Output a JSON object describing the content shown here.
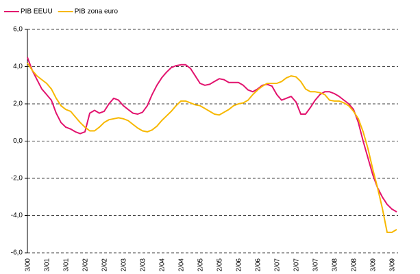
{
  "chart_data": {
    "type": "line",
    "categories": [
      "3/00",
      null,
      null,
      null,
      "3/01",
      null,
      null,
      null,
      "3/01",
      null,
      null,
      null,
      "2/02",
      null,
      null,
      null,
      "2/02",
      null,
      null,
      null,
      "2/03",
      null,
      null,
      null,
      "2/03",
      null,
      null,
      null,
      "2/04",
      null,
      null,
      null,
      "2/04",
      null,
      null,
      null,
      "2/05",
      null,
      null,
      null,
      "2/05",
      null,
      null,
      null,
      "2/06",
      null,
      null,
      null,
      "2/06",
      null,
      null,
      null,
      "2/07",
      null,
      null,
      null,
      "2/07",
      null,
      null,
      null,
      "3/07",
      null,
      null,
      null,
      "3/08",
      null,
      null,
      null,
      "2/08",
      null,
      null,
      null,
      "3/09",
      null,
      null,
      null,
      "3/09",
      null
    ],
    "series": [
      {
        "name": "PIB EEUU",
        "color": "#e2136e",
        "values": [
          4.5,
          3.8,
          3.3,
          2.8,
          2.5,
          2.2,
          1.5,
          1.0,
          0.75,
          0.65,
          0.5,
          0.4,
          0.5,
          1.5,
          1.65,
          1.5,
          1.6,
          2.0,
          2.3,
          2.2,
          1.9,
          1.7,
          1.5,
          1.45,
          1.55,
          1.9,
          2.5,
          3.0,
          3.4,
          3.7,
          3.95,
          4.05,
          4.1,
          4.1,
          3.9,
          3.5,
          3.1,
          3.0,
          3.05,
          3.2,
          3.35,
          3.3,
          3.15,
          3.15,
          3.15,
          3.0,
          2.75,
          2.65,
          2.8,
          3.0,
          3.05,
          2.95,
          2.5,
          2.2,
          2.3,
          2.4,
          2.1,
          1.45,
          1.45,
          1.8,
          2.2,
          2.5,
          2.65,
          2.65,
          2.55,
          2.4,
          2.2,
          2.0,
          1.7,
          1.0,
          0.0,
          -0.9,
          -1.8,
          -2.5,
          -3.0,
          -3.4,
          -3.65,
          -3.8
        ]
      },
      {
        "name": "PIB zona euro",
        "color": "#f7b800",
        "values": [
          4.2,
          3.8,
          3.5,
          3.3,
          3.1,
          2.8,
          2.3,
          1.9,
          1.7,
          1.6,
          1.3,
          1.0,
          0.75,
          0.55,
          0.55,
          0.75,
          1.0,
          1.15,
          1.2,
          1.25,
          1.2,
          1.1,
          0.9,
          0.7,
          0.55,
          0.5,
          0.6,
          0.8,
          1.1,
          1.35,
          1.6,
          1.9,
          2.15,
          2.15,
          2.05,
          1.95,
          1.9,
          1.75,
          1.6,
          1.45,
          1.4,
          1.55,
          1.7,
          1.9,
          2.0,
          2.05,
          2.2,
          2.5,
          2.75,
          2.95,
          3.1,
          3.1,
          3.1,
          3.2,
          3.4,
          3.5,
          3.45,
          3.2,
          2.8,
          2.65,
          2.65,
          2.6,
          2.5,
          2.2,
          2.15,
          2.15,
          2.05,
          1.9,
          1.6,
          1.2,
          0.5,
          -0.4,
          -1.5,
          -2.5,
          -3.6,
          -4.9,
          -4.9,
          -4.75
        ]
      }
    ],
    "ylim": [
      -6,
      6
    ],
    "yticks": [
      {
        "value": -6,
        "label": "-6,0"
      },
      {
        "value": -4,
        "label": "-4,0"
      },
      {
        "value": -2,
        "label": "-2,0"
      },
      {
        "value": 0,
        "label": "0,0"
      },
      {
        "value": 2,
        "label": "2,0"
      },
      {
        "value": 4,
        "label": "4,0"
      },
      {
        "value": 6,
        "label": "6,0"
      }
    ],
    "grid": true,
    "legend": "top-left"
  }
}
